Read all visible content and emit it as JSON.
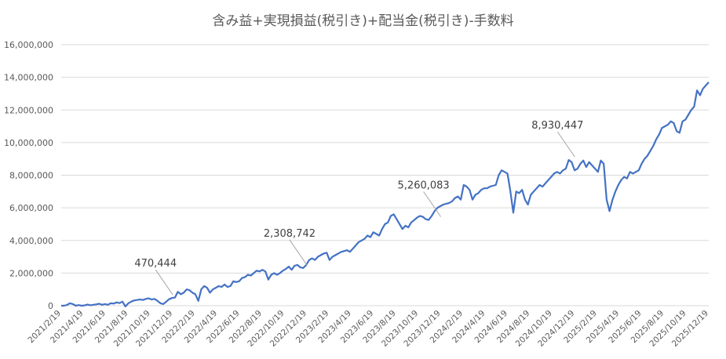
{
  "chart_data": {
    "type": "line",
    "title": "含み益+実現損益(税引き)+配当金(税引き)-手数料",
    "xlabel": "",
    "ylabel": "",
    "ylim": [
      0,
      16000000
    ],
    "grid": true,
    "legend": "none",
    "color": "#4472c4",
    "y_ticks": [
      "0",
      "2,000,000",
      "4,000,000",
      "6,000,000",
      "8,000,000",
      "10,000,000",
      "12,000,000",
      "14,000,000",
      "16,000,000"
    ],
    "x_ticks": [
      "2021/2/19",
      "2021/4/19",
      "2021/6/19",
      "2021/8/19",
      "2021/10/19",
      "2021/12/19",
      "2022/2/19",
      "2022/4/19",
      "2022/6/19",
      "2022/8/19",
      "2022/10/19",
      "2022/12/19",
      "2023/2/19",
      "2023/4/19",
      "2023/6/19",
      "2023/8/19",
      "2023/10/19",
      "2023/12/19",
      "2024/2/19",
      "2024/4/19",
      "2024/6/19",
      "2024/8/19",
      "2024/10/19",
      "2024/12/19",
      "2025/2/19",
      "2025/4/19",
      "2025/6/19",
      "2025/8/19",
      "2025/10/19",
      "2025/12/19"
    ],
    "annotations": [
      {
        "x": "2021/12/19",
        "value": 470444,
        "label": "470,444"
      },
      {
        "x": "2022/12/19",
        "value": 2308742,
        "label": "2,308,742"
      },
      {
        "x": "2023/12/19",
        "value": 5260083,
        "label": "5,260,083"
      },
      {
        "x": "2024/12/19",
        "value": 8930447,
        "label": "8,930,447"
      }
    ],
    "series": [
      {
        "values": [
          0,
          0,
          50000,
          150000,
          100000,
          0,
          40000,
          0,
          20000,
          70000,
          30000,
          60000,
          80000,
          120000,
          60000,
          100000,
          60000,
          150000,
          130000,
          200000,
          160000,
          250000,
          -50000,
          150000,
          250000,
          320000,
          350000,
          380000,
          350000,
          420000,
          450000,
          380000,
          420000,
          300000,
          150000,
          100000,
          250000,
          400000,
          470444,
          500000,
          850000,
          700000,
          800000,
          1000000,
          950000,
          800000,
          700000,
          300000,
          1000000,
          1200000,
          1100000,
          800000,
          1000000,
          1100000,
          1200000,
          1150000,
          1300000,
          1150000,
          1200000,
          1500000,
          1450000,
          1500000,
          1700000,
          1750000,
          1900000,
          1850000,
          2000000,
          2150000,
          2100000,
          2200000,
          2100000,
          1600000,
          1900000,
          2000000,
          1900000,
          2000000,
          2150000,
          2250000,
          2400000,
          2200000,
          2450000,
          2500000,
          2350000,
          2308742,
          2500000,
          2800000,
          2900000,
          2800000,
          3000000,
          3100000,
          3200000,
          3250000,
          2800000,
          3000000,
          3100000,
          3200000,
          3300000,
          3350000,
          3400000,
          3300000,
          3500000,
          3700000,
          3900000,
          4000000,
          4100000,
          4300000,
          4200000,
          4500000,
          4400000,
          4300000,
          4700000,
          5000000,
          5100000,
          5500000,
          5600000,
          5300000,
          5000000,
          4700000,
          4900000,
          4800000,
          5100000,
          5250000,
          5400000,
          5500000,
          5450000,
          5300000,
          5260083,
          5500000,
          5800000,
          6000000,
          6100000,
          6200000,
          6250000,
          6300000,
          6400000,
          6600000,
          6700000,
          6500000,
          7400000,
          7300000,
          7100000,
          6500000,
          6800000,
          6900000,
          7100000,
          7200000,
          7200000,
          7300000,
          7350000,
          7400000,
          8000000,
          8300000,
          8200000,
          8100000,
          7000000,
          5700000,
          7000000,
          6900000,
          7100000,
          6500000,
          6200000,
          6800000,
          7000000,
          7200000,
          7400000,
          7300000,
          7500000,
          7700000,
          7900000,
          8100000,
          8200000,
          8100000,
          8300000,
          8400000,
          8930447,
          8800000,
          8300000,
          8400000,
          8700000,
          8900000,
          8500000,
          8800000,
          8600000,
          8400000,
          8200000,
          8900000,
          8700000,
          6500000,
          5800000,
          6500000,
          7000000,
          7400000,
          7700000,
          7900000,
          7800000,
          8200000,
          8100000,
          8200000,
          8300000,
          8700000,
          9000000,
          9200000,
          9500000,
          9800000,
          10200000,
          10500000,
          10900000,
          11000000,
          11100000,
          11300000,
          11200000,
          10700000,
          10600000,
          11300000,
          11400000,
          11700000,
          12000000,
          12200000,
          13200000,
          12900000,
          13300000,
          13500000,
          13700000
        ]
      }
    ]
  }
}
